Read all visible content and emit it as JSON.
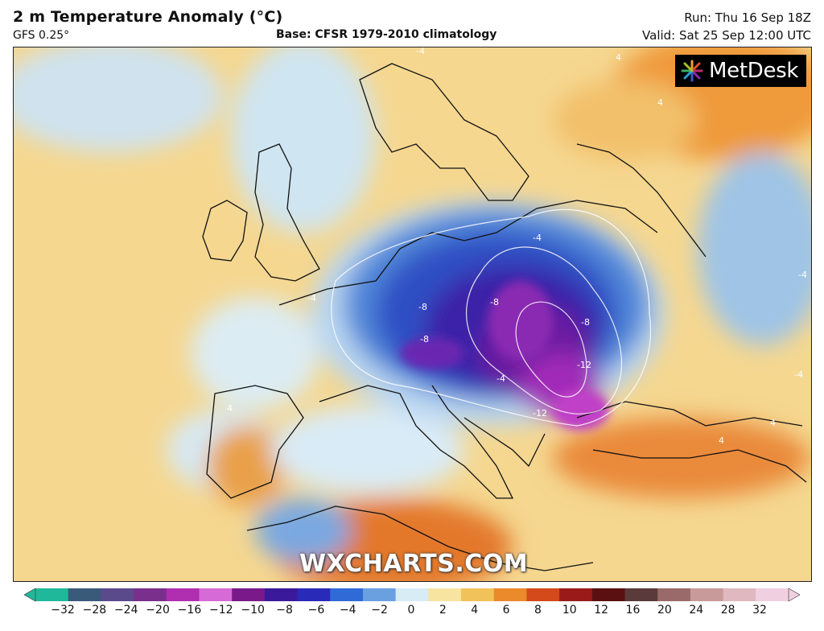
{
  "header": {
    "title": "2 m Temperature Anomaly (°C)",
    "model": "GFS 0.25°",
    "base": "Base: CFSR 1979-2010 climatology",
    "run": "Run: Thu 16 Sep 18Z",
    "valid": "Valid: Sat 25 Sep 12:00 UTC"
  },
  "logo": {
    "text": "MetDesk",
    "icon": "metdesk-burst-icon"
  },
  "watermark": "WXCHARTS.COM",
  "map": {
    "contour_labels": [
      "-4",
      "-4",
      "-4",
      "-4",
      "-4",
      "-4",
      "-8",
      "-8",
      "-8",
      "-8",
      "-12",
      "-12",
      "4",
      "4",
      "4",
      "4",
      "4"
    ]
  },
  "colorbar": {
    "ticks": [
      "−32",
      "−28",
      "−24",
      "−20",
      "−16",
      "−12",
      "−10",
      "−8",
      "−6",
      "−4",
      "−2",
      "0",
      "2",
      "4",
      "6",
      "8",
      "10",
      "12",
      "16",
      "20",
      "24",
      "28",
      "32"
    ],
    "colors": [
      "#1fb89a",
      "#3a5a7a",
      "#5a4a8c",
      "#7a2f8c",
      "#b02fb0",
      "#d66ad6",
      "#7a1a8a",
      "#3a1a9a",
      "#2a2ab8",
      "#2f6ad6",
      "#6aa0e0",
      "#d8ecf6",
      "#f7e4a0",
      "#f2c25a",
      "#ea8a2a",
      "#d44a1a",
      "#9a1a1a",
      "#5a1010",
      "#5a3a3a",
      "#9a6a6a",
      "#c89a9a",
      "#e0b8c0",
      "#f0d0e0"
    ]
  }
}
